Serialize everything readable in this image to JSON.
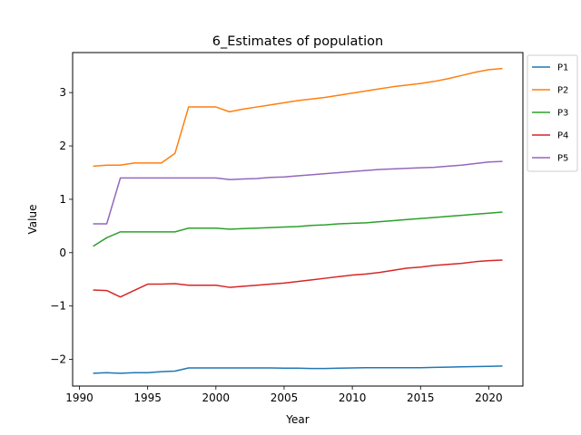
{
  "chart_data": {
    "type": "line",
    "title": "6_Estimates of population",
    "xlabel": "Year",
    "ylabel": "Value",
    "xlim": [
      1989.5,
      2022.5
    ],
    "ylim": [
      -2.5,
      3.75
    ],
    "xticks": [
      1990,
      1995,
      2000,
      2005,
      2010,
      2015,
      2020
    ],
    "yticks": [
      -2,
      -1,
      0,
      1,
      2,
      3
    ],
    "grid": false,
    "legend": "outside-top-right",
    "x": [
      1991,
      1992,
      1993,
      1994,
      1995,
      1996,
      1997,
      1998,
      1999,
      2000,
      2001,
      2002,
      2003,
      2004,
      2005,
      2006,
      2007,
      2008,
      2009,
      2010,
      2011,
      2012,
      2013,
      2014,
      2015,
      2016,
      2017,
      2018,
      2019,
      2020,
      2021
    ],
    "series": [
      {
        "name": "P1",
        "color": "#1f77b4",
        "values": [
          -2.26,
          -2.25,
          -2.26,
          -2.25,
          -2.25,
          -2.23,
          -2.22,
          -2.16,
          -2.16,
          -2.16,
          -2.16,
          -2.16,
          -2.16,
          -2.16,
          -2.165,
          -2.165,
          -2.17,
          -2.17,
          -2.165,
          -2.16,
          -2.155,
          -2.155,
          -2.155,
          -2.155,
          -2.155,
          -2.15,
          -2.145,
          -2.14,
          -2.135,
          -2.13,
          -2.125
        ]
      },
      {
        "name": "P2",
        "color": "#ff7f0e",
        "values": [
          1.62,
          1.64,
          1.64,
          1.68,
          1.68,
          1.68,
          1.86,
          2.73,
          2.73,
          2.73,
          2.64,
          2.69,
          2.73,
          2.77,
          2.81,
          2.85,
          2.88,
          2.91,
          2.95,
          2.99,
          3.03,
          3.07,
          3.11,
          3.14,
          3.17,
          3.21,
          3.26,
          3.32,
          3.38,
          3.43,
          3.45
        ]
      },
      {
        "name": "P3",
        "color": "#2ca02c",
        "values": [
          0.12,
          0.28,
          0.39,
          0.39,
          0.39,
          0.39,
          0.39,
          0.46,
          0.46,
          0.46,
          0.44,
          0.45,
          0.46,
          0.47,
          0.48,
          0.49,
          0.51,
          0.52,
          0.54,
          0.55,
          0.56,
          0.58,
          0.6,
          0.62,
          0.64,
          0.66,
          0.68,
          0.7,
          0.72,
          0.74,
          0.76
        ]
      },
      {
        "name": "P4",
        "color": "#d62728",
        "values": [
          -0.7,
          -0.71,
          -0.83,
          -0.71,
          -0.59,
          -0.59,
          -0.58,
          -0.61,
          -0.61,
          -0.61,
          -0.65,
          -0.63,
          -0.61,
          -0.59,
          -0.57,
          -0.54,
          -0.51,
          -0.48,
          -0.45,
          -0.42,
          -0.4,
          -0.37,
          -0.33,
          -0.29,
          -0.27,
          -0.24,
          -0.22,
          -0.2,
          -0.17,
          -0.15,
          -0.14
        ]
      },
      {
        "name": "P5",
        "color": "#9467bd",
        "values": [
          0.54,
          0.54,
          1.4,
          1.4,
          1.4,
          1.4,
          1.4,
          1.4,
          1.4,
          1.4,
          1.37,
          1.38,
          1.39,
          1.41,
          1.42,
          1.44,
          1.46,
          1.48,
          1.5,
          1.52,
          1.54,
          1.56,
          1.57,
          1.58,
          1.59,
          1.6,
          1.62,
          1.64,
          1.67,
          1.7,
          1.71
        ]
      }
    ]
  }
}
